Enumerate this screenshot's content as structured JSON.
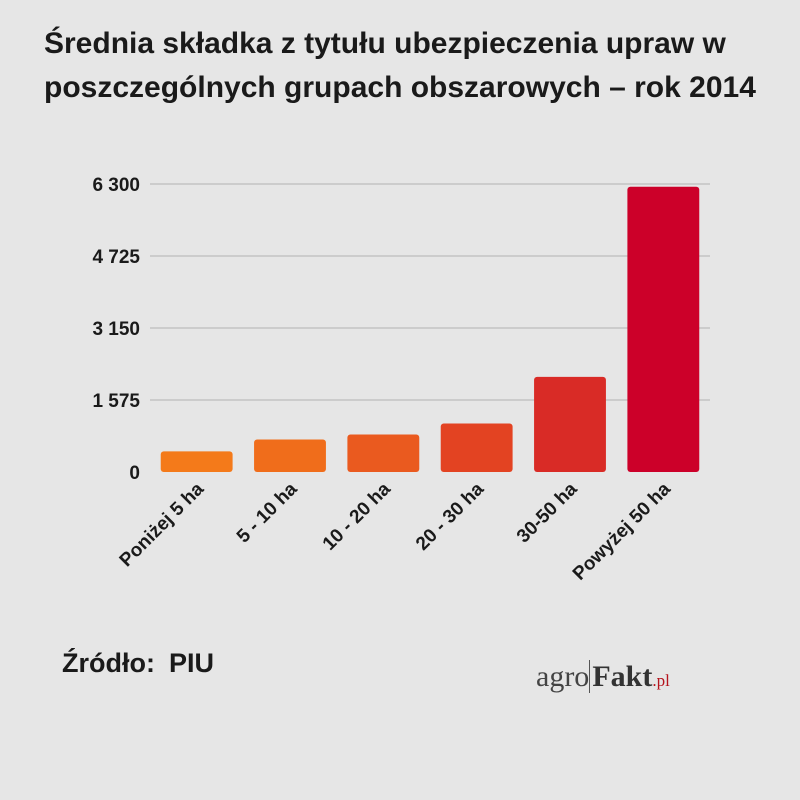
{
  "title": "Średnia składka z tytułu ubezpieczenia upraw w poszczególnych grupach obszarowych – rok 2014",
  "source": {
    "label": "Źródło:",
    "value": "PIU"
  },
  "logo": {
    "part1": "agro",
    "part2": "Fakt",
    "part3": ".pl"
  },
  "chart_data": {
    "type": "bar",
    "title": "Średnia składka z tytułu ubezpieczenia upraw w poszczególnych grupach obszarowych – rok 2014",
    "xlabel": "",
    "ylabel": "",
    "ylim": [
      0,
      6300
    ],
    "yticks": [
      0,
      1575,
      3150,
      4725,
      6300
    ],
    "ytick_labels": [
      "0",
      "1 575",
      "3 150",
      "4 725",
      "6 300"
    ],
    "grid": true,
    "categories": [
      "Poniżej 5 ha",
      "5 - 10 ha",
      "10 - 20 ha",
      "20 - 30 ha",
      "30-50 ha",
      "Powyżej 50 ha"
    ],
    "values": [
      450,
      710,
      820,
      1060,
      2080,
      6240
    ],
    "colors": [
      "#f47a1a",
      "#f06d1b",
      "#ea5a1f",
      "#e34322",
      "#d92b26",
      "#cc0029"
    ]
  }
}
